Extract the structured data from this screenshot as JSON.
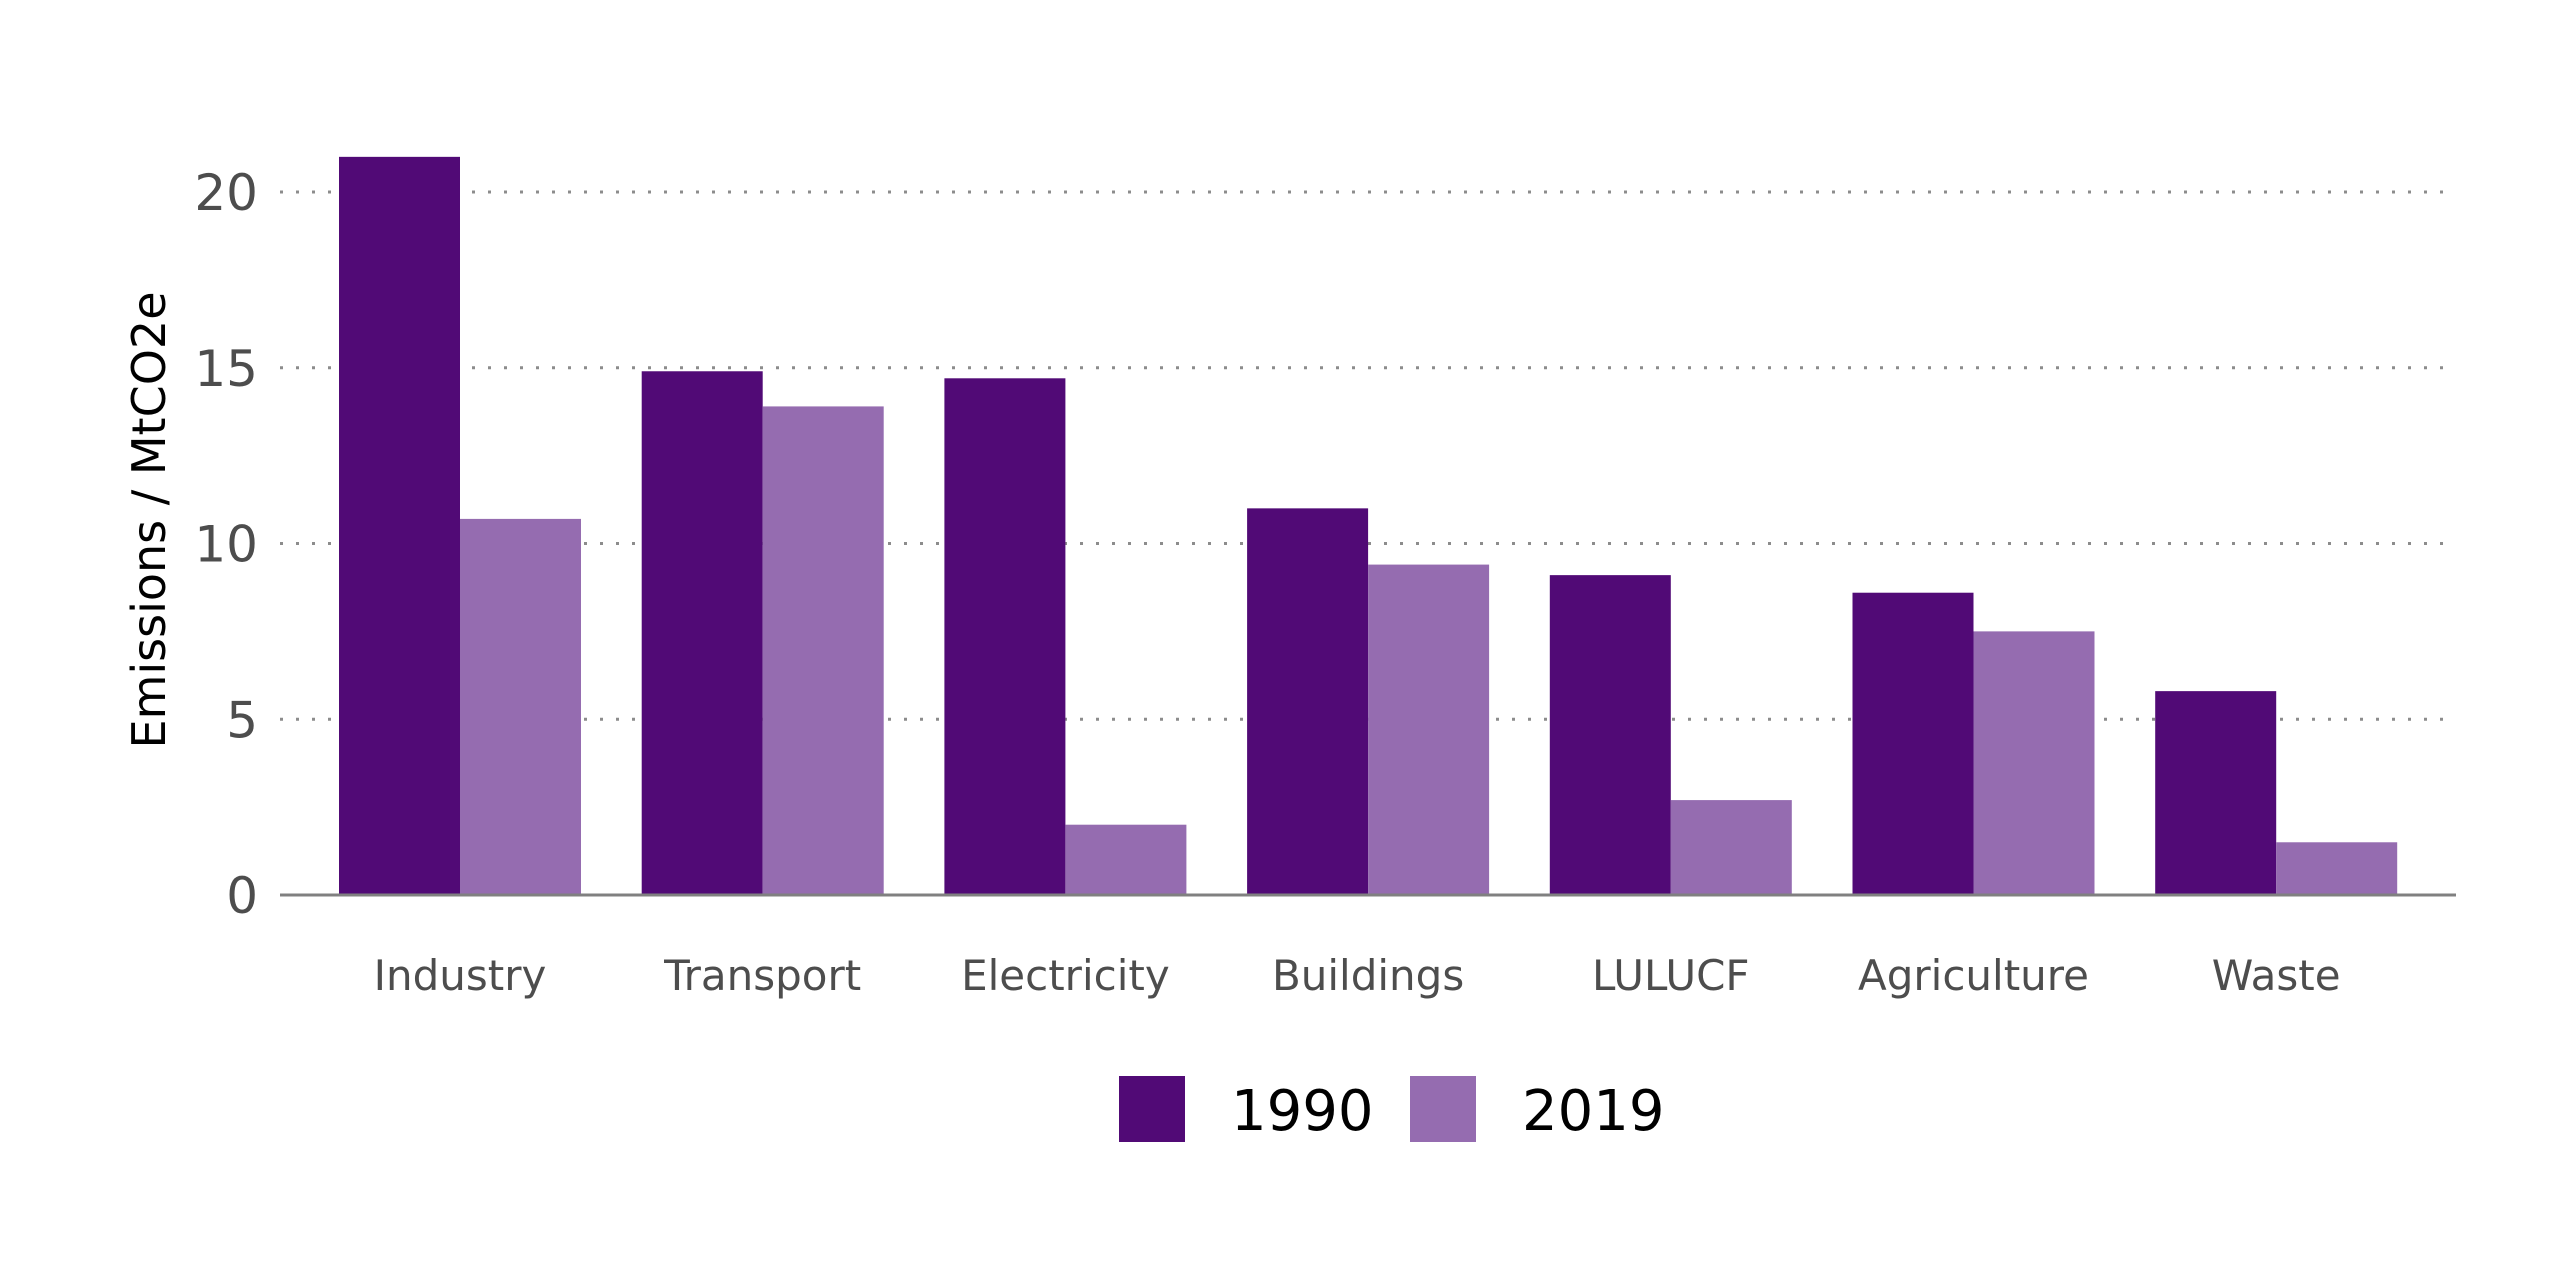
{
  "chart_data": {
    "type": "bar",
    "title": "",
    "xlabel": "",
    "ylabel": "Emissions / MtCO2e",
    "ylim": [
      0,
      20.5
    ],
    "yticks": [
      "0",
      "5",
      "10",
      "15",
      "20"
    ],
    "categories": [
      "Industry",
      "Transport",
      "Electricity",
      "Buildings",
      "LULUCF",
      "Agriculture",
      "Waste"
    ],
    "series": [
      {
        "name": "1990",
        "color": "#510a76",
        "values": [
          21.0,
          14.9,
          14.7,
          11.0,
          9.1,
          8.6,
          5.8
        ]
      },
      {
        "name": "2019",
        "color": "#956cb0",
        "values": [
          10.7,
          13.9,
          2.0,
          9.4,
          2.7,
          7.5,
          1.5
        ]
      }
    ],
    "grid": "horizontal dotted",
    "legend": "bottom-center"
  }
}
